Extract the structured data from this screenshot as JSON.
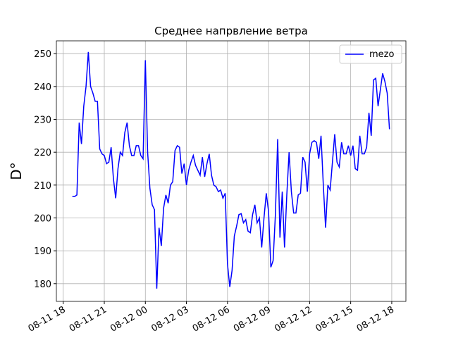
{
  "chart_data": {
    "type": "line",
    "title": "Среднее напрвление ветра",
    "ylabel": "D°",
    "x": [
      "08-11 18:40",
      "08-11 18:50",
      "08-11 19:00",
      "08-11 19:10",
      "08-11 19:20",
      "08-11 19:30",
      "08-11 19:40",
      "08-11 19:50",
      "08-11 20:00",
      "08-11 20:10",
      "08-11 20:20",
      "08-11 20:30",
      "08-11 20:40",
      "08-11 20:50",
      "08-11 21:00",
      "08-11 21:10",
      "08-11 21:20",
      "08-11 21:30",
      "08-11 21:40",
      "08-11 21:50",
      "08-11 22:00",
      "08-11 22:10",
      "08-11 22:20",
      "08-11 22:30",
      "08-11 22:40",
      "08-11 22:50",
      "08-11 23:00",
      "08-11 23:10",
      "08-11 23:20",
      "08-11 23:30",
      "08-11 23:40",
      "08-11 23:50",
      "08-12 00:00",
      "08-12 00:10",
      "08-12 00:20",
      "08-12 00:30",
      "08-12 00:40",
      "08-12 00:50",
      "08-12 01:00",
      "08-12 01:10",
      "08-12 01:20",
      "08-12 01:30",
      "08-12 01:40",
      "08-12 01:50",
      "08-12 02:00",
      "08-12 02:10",
      "08-12 02:20",
      "08-12 02:30",
      "08-12 02:40",
      "08-12 02:50",
      "08-12 03:00",
      "08-12 03:10",
      "08-12 03:20",
      "08-12 03:30",
      "08-12 03:40",
      "08-12 03:50",
      "08-12 04:00",
      "08-12 04:10",
      "08-12 04:20",
      "08-12 04:30",
      "08-12 04:40",
      "08-12 04:50",
      "08-12 05:00",
      "08-12 05:10",
      "08-12 05:20",
      "08-12 05:30",
      "08-12 05:40",
      "08-12 05:50",
      "08-12 06:00",
      "08-12 06:10",
      "08-12 06:20",
      "08-12 06:30",
      "08-12 06:40",
      "08-12 06:50",
      "08-12 07:00",
      "08-12 07:10",
      "08-12 07:20",
      "08-12 07:30",
      "08-12 07:40",
      "08-12 07:50",
      "08-12 08:00",
      "08-12 08:10",
      "08-12 08:20",
      "08-12 08:30",
      "08-12 08:40",
      "08-12 08:50",
      "08-12 09:00",
      "08-12 09:10",
      "08-12 09:20",
      "08-12 09:30",
      "08-12 09:40",
      "08-12 09:50",
      "08-12 10:00",
      "08-12 10:10",
      "08-12 10:20",
      "08-12 10:30",
      "08-12 10:40",
      "08-12 10:50",
      "08-12 11:00",
      "08-12 11:10",
      "08-12 11:20",
      "08-12 11:30",
      "08-12 11:40",
      "08-12 11:50",
      "08-12 12:00",
      "08-12 12:10",
      "08-12 12:20",
      "08-12 12:30",
      "08-12 12:40",
      "08-12 12:50",
      "08-12 13:00",
      "08-12 13:10",
      "08-12 13:20",
      "08-12 13:30",
      "08-12 13:40",
      "08-12 13:50",
      "08-12 14:00",
      "08-12 14:10",
      "08-12 14:20",
      "08-12 14:30",
      "08-12 14:40",
      "08-12 14:50",
      "08-12 15:00",
      "08-12 15:10",
      "08-12 15:20",
      "08-12 15:30",
      "08-12 15:40",
      "08-12 15:50",
      "08-12 16:00",
      "08-12 16:10",
      "08-12 16:20",
      "08-12 16:30",
      "08-12 16:40",
      "08-12 16:50",
      "08-12 17:00",
      "08-12 17:10",
      "08-12 17:20",
      "08-12 17:30",
      "08-12 17:40",
      "08-12 17:50"
    ],
    "series": [
      {
        "name": "mezo",
        "color": "#0000ff",
        "values": [
          206.5,
          206.5,
          207,
          229,
          222.5,
          234,
          240,
          250.5,
          240,
          238,
          235.5,
          235.5,
          221,
          219.5,
          219,
          216.5,
          217,
          221.5,
          212,
          206,
          215,
          220,
          219,
          226,
          229,
          222,
          219,
          219,
          222,
          222,
          219,
          218,
          248,
          220,
          209,
          204,
          202.5,
          178.5,
          197,
          191.5,
          203,
          207,
          204.5,
          210,
          211,
          220.5,
          222,
          221.5,
          213.5,
          216.5,
          210,
          214.5,
          217,
          219,
          216,
          214.5,
          213,
          218.5,
          212.5,
          216.5,
          219.5,
          213,
          210,
          209.5,
          208,
          208.5,
          206,
          207.5,
          186,
          179,
          184,
          194.5,
          197.5,
          201,
          201.3,
          198.5,
          199.5,
          196,
          195.5,
          201,
          204,
          198.5,
          200,
          191,
          200,
          207.5,
          202,
          185,
          187,
          201,
          224,
          194,
          208,
          191,
          207,
          220,
          208,
          201.5,
          201.5,
          207,
          207.5,
          218.5,
          217,
          208,
          219.5,
          223,
          223.5,
          223,
          218,
          225,
          210,
          197,
          210,
          208.5,
          217,
          225.5,
          217,
          215.5,
          223,
          219.5,
          219.5,
          222,
          219,
          222,
          215,
          214.5,
          225,
          219.5,
          219.5,
          221.5,
          232,
          225,
          242,
          242.5,
          234,
          239,
          244,
          241.5,
          238,
          227
        ]
      }
    ],
    "xlim": [
      "08-11 17:30",
      "08-12 19:02"
    ],
    "xticks": [
      {
        "value": "08-11 18:00",
        "label": "08-11 18"
      },
      {
        "value": "08-11 21:00",
        "label": "08-11 21"
      },
      {
        "value": "08-12 00:00",
        "label": "08-12 00"
      },
      {
        "value": "08-12 03:00",
        "label": "08-12 03"
      },
      {
        "value": "08-12 06:00",
        "label": "08-12 06"
      },
      {
        "value": "08-12 09:00",
        "label": "08-12 09"
      },
      {
        "value": "08-12 12:00",
        "label": "08-12 12"
      },
      {
        "value": "08-12 15:00",
        "label": "08-12 15"
      },
      {
        "value": "08-12 18:00",
        "label": "08-12 18"
      }
    ],
    "ylim": [
      174.6,
      253.9
    ],
    "yticks": [
      180,
      190,
      200,
      210,
      220,
      230,
      240,
      250
    ],
    "grid": true,
    "legend": "upper right"
  }
}
